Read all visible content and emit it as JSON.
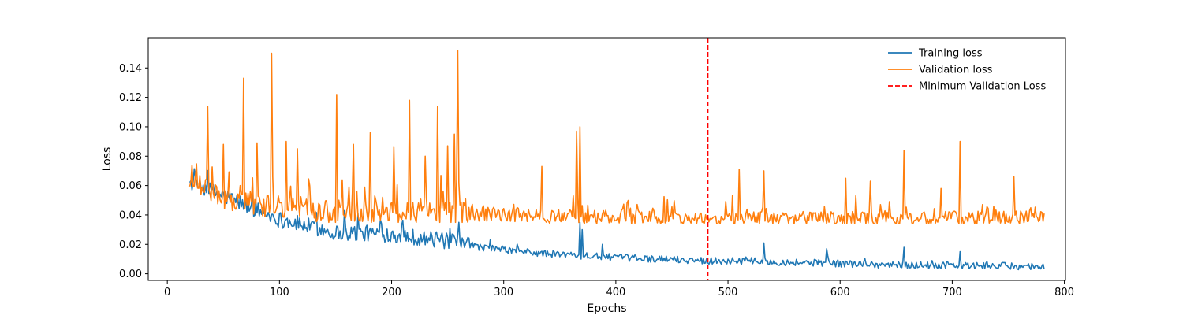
{
  "chart_data": {
    "type": "line",
    "xlabel": "Epochs",
    "ylabel": "Loss",
    "xlim": [
      -17,
      801
    ],
    "ylim": [
      -0.0045,
      0.1605
    ],
    "xticks": [
      0,
      100,
      200,
      300,
      400,
      500,
      600,
      700,
      800
    ],
    "yticks": [
      0.0,
      0.02,
      0.04,
      0.06,
      0.08,
      0.1,
      0.12,
      0.14
    ],
    "ytick_labels": [
      "0.00",
      "0.02",
      "0.04",
      "0.06",
      "0.08",
      "0.10",
      "0.12",
      "0.14"
    ],
    "legend_position": "top-right",
    "grid": false,
    "series": [
      {
        "name": "Training loss",
        "color": "#1f77b4",
        "style": "solid",
        "x_start": 20,
        "x_end": 782,
        "anchors": [
          [
            20,
            0.062
          ],
          [
            60,
            0.05
          ],
          [
            100,
            0.037
          ],
          [
            150,
            0.028
          ],
          [
            200,
            0.027
          ],
          [
            250,
            0.022
          ],
          [
            280,
            0.018
          ],
          [
            330,
            0.014
          ],
          [
            400,
            0.011
          ],
          [
            480,
            0.009
          ],
          [
            550,
            0.008
          ],
          [
            650,
            0.006
          ],
          [
            782,
            0.005
          ]
        ],
        "spikes": [
          [
            368,
            0.035
          ],
          [
            370,
            0.03
          ],
          [
            388,
            0.02
          ],
          [
            532,
            0.021
          ],
          [
            588,
            0.017
          ],
          [
            657,
            0.018
          ],
          [
            707,
            0.015
          ],
          [
            260,
            0.035
          ],
          [
            252,
            0.031
          ],
          [
            158,
            0.043
          ],
          [
            170,
            0.041
          ]
        ]
      },
      {
        "name": "Validation loss",
        "color": "#ff7f0e",
        "style": "solid",
        "x_start": 20,
        "x_end": 782,
        "anchors": [
          [
            20,
            0.063
          ],
          [
            60,
            0.05
          ],
          [
            100,
            0.046
          ],
          [
            150,
            0.043
          ],
          [
            200,
            0.043
          ],
          [
            260,
            0.042
          ],
          [
            300,
            0.04
          ],
          [
            400,
            0.039
          ],
          [
            500,
            0.038
          ],
          [
            600,
            0.038
          ],
          [
            700,
            0.038
          ],
          [
            782,
            0.039
          ]
        ],
        "spikes": [
          [
            36,
            0.114
          ],
          [
            68,
            0.133
          ],
          [
            93,
            0.15
          ],
          [
            151,
            0.122
          ],
          [
            181,
            0.096
          ],
          [
            216,
            0.118
          ],
          [
            241,
            0.114
          ],
          [
            256,
            0.095
          ],
          [
            259,
            0.152
          ],
          [
            250,
            0.087
          ],
          [
            166,
            0.088
          ],
          [
            106,
            0.09
          ],
          [
            116,
            0.085
          ],
          [
            80,
            0.089
          ],
          [
            50,
            0.088
          ],
          [
            202,
            0.086
          ],
          [
            230,
            0.08
          ],
          [
            334,
            0.073
          ],
          [
            365,
            0.097
          ],
          [
            368,
            0.1
          ],
          [
            510,
            0.071
          ],
          [
            532,
            0.07
          ],
          [
            657,
            0.084
          ],
          [
            707,
            0.09
          ],
          [
            755,
            0.066
          ],
          [
            605,
            0.065
          ],
          [
            627,
            0.063
          ],
          [
            690,
            0.058
          ]
        ]
      }
    ],
    "annotations": [
      {
        "type": "vline",
        "name": "Minimum Validation Loss",
        "x": 482,
        "color": "#ff0000",
        "style": "dashed"
      }
    ]
  }
}
